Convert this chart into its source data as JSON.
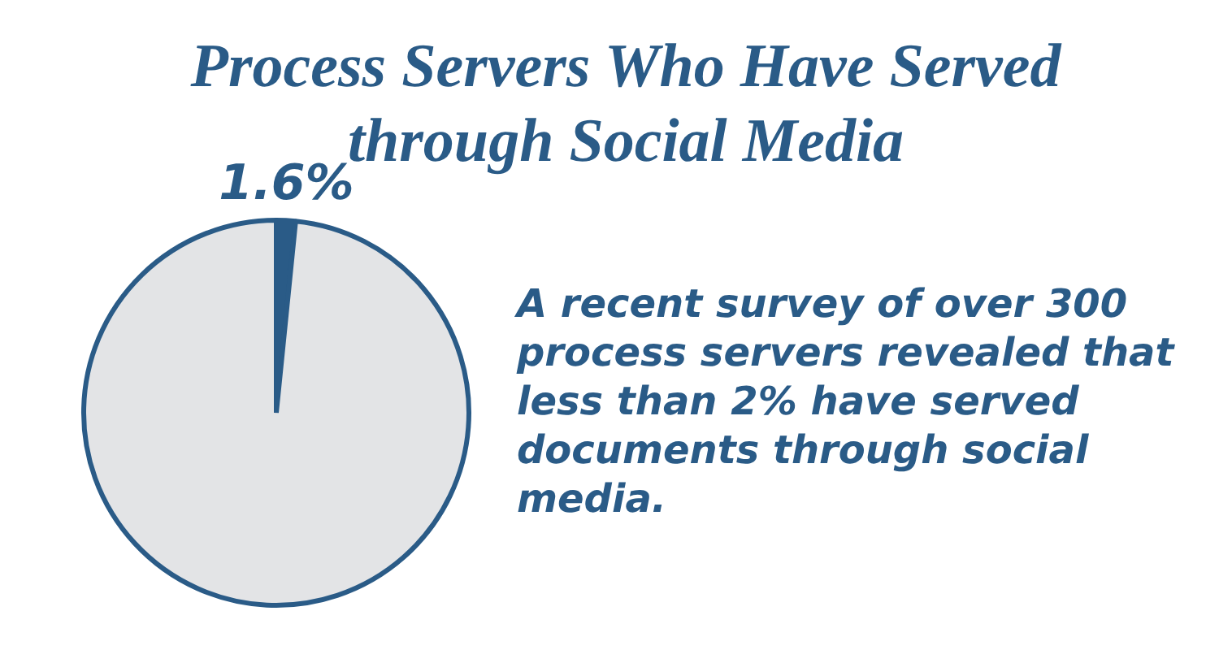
{
  "chart_data": {
    "type": "pie",
    "title": "Process Servers Who Have Served through Social Media",
    "categories": [
      null,
      null
    ],
    "values": [
      1.6,
      98.4
    ],
    "colors": [
      "#2a5b87",
      "#e3e4e6"
    ],
    "value_labels": [
      "1.6%",
      null
    ],
    "annotations": [
      "A recent survey of over 300 process servers revealed that less than 2% have served documents through social media."
    ],
    "legend": false
  }
}
